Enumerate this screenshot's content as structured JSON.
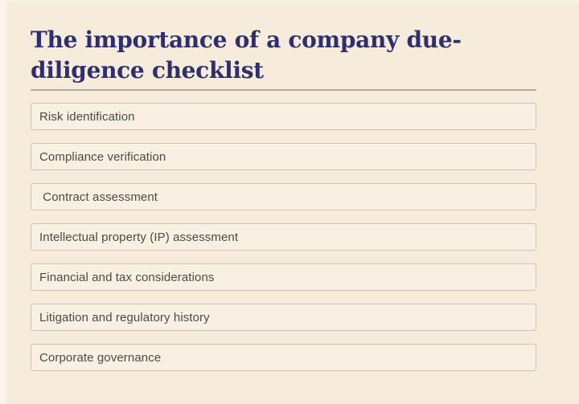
{
  "page": {
    "title": "The importance of a company due-diligence checklist"
  },
  "checklist": {
    "items": [
      {
        "label": "Risk identification"
      },
      {
        "label": "Compliance verification"
      },
      {
        "label": " Contract assessment"
      },
      {
        "label": "Intellectual property (IP) assessment"
      },
      {
        "label": "Financial and tax considerations"
      },
      {
        "label": "Litigation and regulatory history"
      },
      {
        "label": "Corporate governance"
      }
    ]
  },
  "colors": {
    "page_background": "#f7ebdb",
    "page_edge": "#fbf4ea",
    "title_text": "#2d2f6e",
    "item_text": "#4d4a45",
    "item_border": "#ccc3b7",
    "item_background": "#f9efe2",
    "divider": "#b4aca0"
  }
}
